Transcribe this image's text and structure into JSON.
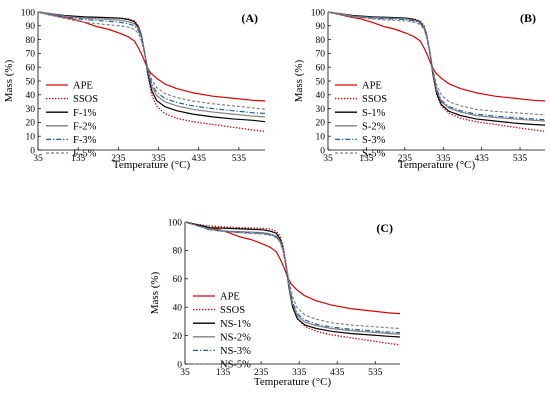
{
  "chart_data": [
    {
      "type": "line",
      "panel_label": "(A)",
      "xlabel": "Temperature (°C)",
      "ylabel": "Mass (%)",
      "xlim": [
        35,
        600
      ],
      "ylim": [
        0,
        100
      ],
      "xticks": [
        35,
        135,
        235,
        335,
        435,
        535
      ],
      "yticks": [
        0,
        10,
        20,
        30,
        40,
        50,
        60,
        70,
        80,
        90,
        100
      ],
      "legend_position": "left-middle",
      "series": [
        {
          "name": "APE",
          "color": "#e00000",
          "style": "solid",
          "x": [
            35,
            60,
            90,
            120,
            150,
            180,
            210,
            240,
            260,
            275,
            285,
            295,
            305,
            315,
            330,
            350,
            380,
            420,
            470,
            520,
            570,
            600
          ],
          "y": [
            100,
            98.5,
            96.5,
            95,
            92.5,
            89.5,
            87.5,
            84.5,
            82,
            79,
            74,
            68,
            61,
            56,
            52,
            48,
            44.5,
            41.5,
            39,
            37.5,
            36,
            35.5
          ]
        },
        {
          "name": "SSOS",
          "color": "#e00000",
          "style": "dotted",
          "x": [
            35,
            60,
            90,
            120,
            150,
            180,
            210,
            240,
            260,
            275,
            285,
            292,
            300,
            308,
            318,
            330,
            350,
            380,
            420,
            470,
            520,
            570,
            600
          ],
          "y": [
            100,
            98.5,
            97.5,
            96.8,
            96.3,
            96,
            95.8,
            95.5,
            95,
            93.5,
            90,
            84,
            72,
            55,
            40,
            32,
            26.5,
            23,
            20.5,
            18.5,
            16.5,
            14.5,
            13.5
          ]
        },
        {
          "name": "F-1%",
          "color": "#000000",
          "style": "solid",
          "x": [
            35,
            60,
            100,
            150,
            200,
            240,
            260,
            275,
            285,
            292,
            300,
            308,
            318,
            330,
            350,
            380,
            420,
            470,
            520,
            570,
            600
          ],
          "y": [
            100,
            99,
            97.5,
            96.5,
            96,
            95.5,
            94.5,
            93,
            89,
            83,
            71,
            56,
            43,
            36,
            31.5,
            28.5,
            26,
            24,
            22.5,
            21.5,
            20.5
          ]
        },
        {
          "name": "F-2%",
          "color": "#808080",
          "style": "solid",
          "x": [
            35,
            60,
            100,
            150,
            200,
            240,
            260,
            275,
            285,
            292,
            300,
            308,
            318,
            330,
            350,
            380,
            420,
            470,
            520,
            570,
            600
          ],
          "y": [
            100,
            99,
            97,
            95.5,
            94.8,
            94,
            93,
            91.5,
            88,
            82,
            71,
            58,
            46,
            39.5,
            35,
            32,
            29.5,
            27.5,
            26,
            24.5,
            24
          ]
        },
        {
          "name": "F-3%",
          "color": "#1f5fa8",
          "style": "dashdot",
          "x": [
            35,
            60,
            100,
            150,
            200,
            240,
            260,
            275,
            285,
            292,
            300,
            308,
            318,
            330,
            350,
            380,
            420,
            470,
            520,
            570,
            600
          ],
          "y": [
            100,
            98.5,
            96.5,
            94.5,
            93.5,
            92.5,
            91.5,
            90,
            86.5,
            81,
            70.5,
            59,
            48,
            42,
            37.5,
            34.5,
            32,
            30,
            28.5,
            27,
            26.5
          ]
        },
        {
          "name": "F-5%",
          "color": "#808080",
          "style": "dashed",
          "x": [
            35,
            60,
            100,
            150,
            200,
            240,
            260,
            275,
            285,
            292,
            300,
            308,
            318,
            330,
            350,
            380,
            420,
            470,
            520,
            570,
            600
          ],
          "y": [
            100,
            98,
            95.5,
            92.5,
            91,
            90,
            89,
            87.5,
            84.5,
            79.5,
            70,
            60,
            51,
            45.5,
            41,
            38,
            35.5,
            33.5,
            32,
            30.5,
            29.5
          ]
        }
      ]
    },
    {
      "type": "line",
      "panel_label": "(B)",
      "xlabel": "Temperature (°C)",
      "ylabel": "Mass (%)",
      "xlim": [
        35,
        600
      ],
      "ylim": [
        0,
        100
      ],
      "xticks": [
        35,
        135,
        235,
        335,
        435,
        535
      ],
      "yticks": [
        0,
        10,
        20,
        30,
        40,
        50,
        60,
        70,
        80,
        90,
        100
      ],
      "legend_position": "left-middle",
      "series": [
        {
          "name": "APE",
          "color": "#e00000",
          "style": "solid",
          "x": [
            35,
            60,
            90,
            120,
            150,
            180,
            210,
            240,
            260,
            275,
            285,
            295,
            305,
            315,
            330,
            350,
            380,
            420,
            470,
            520,
            570,
            600
          ],
          "y": [
            100,
            98.5,
            96.5,
            95,
            92.5,
            89.5,
            87.5,
            84.5,
            82,
            79,
            74,
            68,
            61,
            56,
            52,
            48,
            44.5,
            41.5,
            39,
            37.5,
            36,
            35.5
          ]
        },
        {
          "name": "SSOS",
          "color": "#e00000",
          "style": "dotted",
          "x": [
            35,
            60,
            90,
            120,
            150,
            180,
            210,
            240,
            260,
            275,
            285,
            292,
            300,
            308,
            318,
            330,
            350,
            380,
            420,
            470,
            520,
            570,
            600
          ],
          "y": [
            100,
            98.5,
            97.5,
            96.8,
            96.3,
            96,
            95.8,
            95.5,
            95,
            93.5,
            90,
            84,
            72,
            55,
            40,
            32,
            26.5,
            23,
            20.5,
            18.5,
            16.5,
            14.5,
            13.5
          ]
        },
        {
          "name": "S-1%",
          "color": "#000000",
          "style": "solid",
          "x": [
            35,
            60,
            100,
            150,
            200,
            240,
            260,
            275,
            285,
            292,
            300,
            308,
            318,
            330,
            350,
            380,
            420,
            470,
            520,
            570,
            600
          ],
          "y": [
            100,
            99,
            97.5,
            96.5,
            96,
            95.5,
            94.5,
            93,
            89,
            83,
            71,
            55,
            41,
            33,
            28,
            25,
            22.5,
            21,
            19.5,
            18.5,
            18
          ]
        },
        {
          "name": "S-2%",
          "color": "#808080",
          "style": "solid",
          "x": [
            35,
            60,
            100,
            150,
            200,
            240,
            260,
            275,
            285,
            292,
            300,
            308,
            318,
            330,
            350,
            380,
            420,
            470,
            520,
            570,
            600
          ],
          "y": [
            100,
            99,
            97,
            96,
            95.5,
            95,
            94,
            92.5,
            88.5,
            82.5,
            71,
            56,
            43,
            35,
            30.5,
            27.5,
            25,
            23.5,
            22.5,
            21.5,
            21
          ]
        },
        {
          "name": "S-3%",
          "color": "#1f5fa8",
          "style": "dashdot",
          "x": [
            35,
            60,
            100,
            150,
            200,
            240,
            260,
            275,
            285,
            292,
            300,
            308,
            318,
            330,
            350,
            380,
            420,
            470,
            520,
            570,
            600
          ],
          "y": [
            100,
            98.5,
            96.5,
            95.5,
            95,
            94.5,
            93.5,
            92,
            88,
            82,
            71,
            57,
            44,
            36,
            31.5,
            28.5,
            26,
            24.5,
            23.5,
            22.5,
            22
          ]
        },
        {
          "name": "S-5%",
          "color": "#808080",
          "style": "dashed",
          "x": [
            35,
            60,
            100,
            150,
            200,
            240,
            260,
            275,
            285,
            292,
            300,
            308,
            318,
            330,
            350,
            380,
            420,
            470,
            520,
            570,
            600
          ],
          "y": [
            100,
            98.5,
            96.5,
            95,
            94,
            93.5,
            92.5,
            91,
            87.5,
            82,
            72,
            59,
            47,
            40,
            35,
            32,
            29.5,
            28,
            27,
            26,
            25.5
          ]
        }
      ]
    },
    {
      "type": "line",
      "panel_label": "(C)",
      "xlabel": "Temperature (°C)",
      "ylabel": "Mass (%)",
      "xlim": [
        35,
        600
      ],
      "ylim": [
        0,
        100
      ],
      "xticks": [
        35,
        135,
        235,
        335,
        435,
        535
      ],
      "yticks": [
        0,
        20,
        40,
        60,
        80,
        100
      ],
      "legend_position": "left-middle",
      "series": [
        {
          "name": "APE",
          "color": "#e00000",
          "style": "solid",
          "x": [
            35,
            60,
            90,
            120,
            150,
            180,
            210,
            240,
            260,
            275,
            285,
            295,
            305,
            315,
            330,
            350,
            380,
            420,
            470,
            520,
            570,
            600
          ],
          "y": [
            100,
            98.5,
            96.5,
            95,
            92.5,
            89.5,
            87.5,
            84.5,
            82,
            79,
            74,
            68,
            61,
            56,
            52,
            48,
            44.5,
            41.5,
            39,
            37.5,
            36,
            35.5
          ]
        },
        {
          "name": "SSOS",
          "color": "#e00000",
          "style": "dotted",
          "x": [
            35,
            60,
            90,
            120,
            150,
            180,
            210,
            240,
            260,
            275,
            285,
            292,
            300,
            308,
            318,
            330,
            350,
            380,
            420,
            470,
            520,
            570,
            600
          ],
          "y": [
            100,
            98.5,
            97.5,
            96.8,
            96.3,
            96,
            95.8,
            95.5,
            95,
            93.5,
            90,
            84,
            72,
            55,
            40,
            32,
            26.5,
            23,
            20.5,
            18.5,
            16.5,
            14.5,
            13.5
          ]
        },
        {
          "name": "NS-1%",
          "color": "#000000",
          "style": "solid",
          "x": [
            35,
            60,
            100,
            150,
            200,
            240,
            260,
            275,
            285,
            292,
            300,
            308,
            318,
            330,
            350,
            380,
            420,
            470,
            520,
            570,
            600
          ],
          "y": [
            100,
            98.5,
            96,
            95.5,
            95,
            94.5,
            93.5,
            92,
            88,
            82,
            70,
            54,
            40,
            32,
            27.5,
            25,
            23,
            21.5,
            20.5,
            19.5,
            19
          ]
        },
        {
          "name": "NS-2%",
          "color": "#808080",
          "style": "solid",
          "x": [
            35,
            60,
            100,
            150,
            200,
            240,
            260,
            275,
            285,
            292,
            300,
            308,
            318,
            330,
            350,
            380,
            420,
            470,
            520,
            570,
            600
          ],
          "y": [
            100,
            98,
            95,
            93.5,
            93,
            92.5,
            91.5,
            90,
            86.5,
            81,
            70,
            55,
            42,
            34,
            29.5,
            27,
            25,
            23.5,
            22.5,
            21.5,
            21
          ]
        },
        {
          "name": "NS-3%",
          "color": "#1f5fa8",
          "style": "dashdot",
          "x": [
            35,
            60,
            100,
            150,
            200,
            240,
            260,
            275,
            285,
            292,
            300,
            308,
            318,
            330,
            350,
            380,
            420,
            470,
            520,
            570,
            600
          ],
          "y": [
            100,
            98,
            94.5,
            93,
            92.5,
            92,
            91,
            89.5,
            86,
            80.5,
            70,
            56,
            43.5,
            35.5,
            31,
            28,
            26,
            24.5,
            23.5,
            22.5,
            22
          ]
        },
        {
          "name": "NS-5%",
          "color": "#808080",
          "style": "dashed",
          "x": [
            35,
            60,
            100,
            150,
            200,
            240,
            260,
            275,
            285,
            292,
            300,
            308,
            318,
            330,
            350,
            380,
            420,
            470,
            520,
            570,
            600
          ],
          "y": [
            100,
            98,
            94.5,
            93,
            92,
            91.5,
            90.5,
            89,
            86,
            81,
            71.5,
            59,
            47,
            39.5,
            34.5,
            31.5,
            29,
            27.5,
            26.5,
            25.5,
            25
          ]
        }
      ]
    }
  ]
}
